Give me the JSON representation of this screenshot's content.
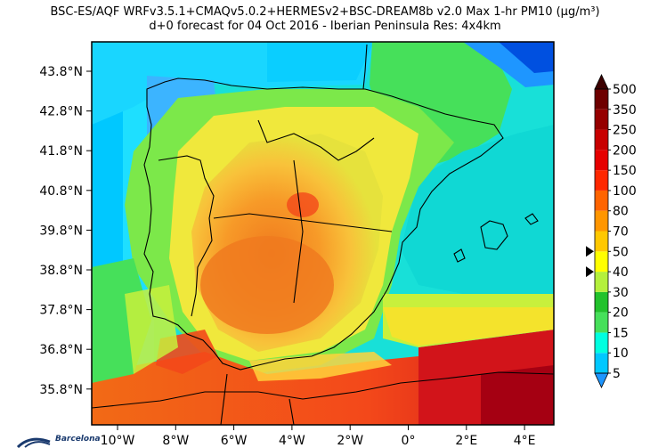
{
  "header": {
    "title_line1": "BSC-ES/AQF WRFv3.5.1+CMAQv5.0.2+HERMESv2+BSC-DREAM8b v2.0 Max 1-hr PM10 (µg/m³)",
    "title_line2": "d+0 forecast for 04 Oct 2016 - Iberian Peninsula Res: 4x4km"
  },
  "axes": {
    "lat_labels": [
      "43.8°N",
      "42.8°N",
      "41.8°N",
      "40.8°N",
      "39.8°N",
      "38.8°N",
      "37.8°N",
      "36.8°N",
      "35.8°N"
    ],
    "lon_labels": [
      "10°W",
      "8°W",
      "6°W",
      "4°W",
      "2°W",
      "0°",
      "2°E",
      "4°E"
    ]
  },
  "colorbar": {
    "levels": [
      "5",
      "10",
      "15",
      "20",
      "30",
      "40",
      "50",
      "70",
      "80",
      "100",
      "150",
      "200",
      "250",
      "350",
      "500"
    ],
    "colors": [
      "#1e96ff",
      "#00c8ff",
      "#00ffe0",
      "#46e05a",
      "#22c22c",
      "#b4f03c",
      "#ffff00",
      "#ffc800",
      "#ff9600",
      "#ff6400",
      "#ff2800",
      "#e60000",
      "#c80000",
      "#960000",
      "#6e0000"
    ],
    "markers": [
      "50",
      "40"
    ]
  },
  "logo": {
    "text": "Barcelona"
  }
}
